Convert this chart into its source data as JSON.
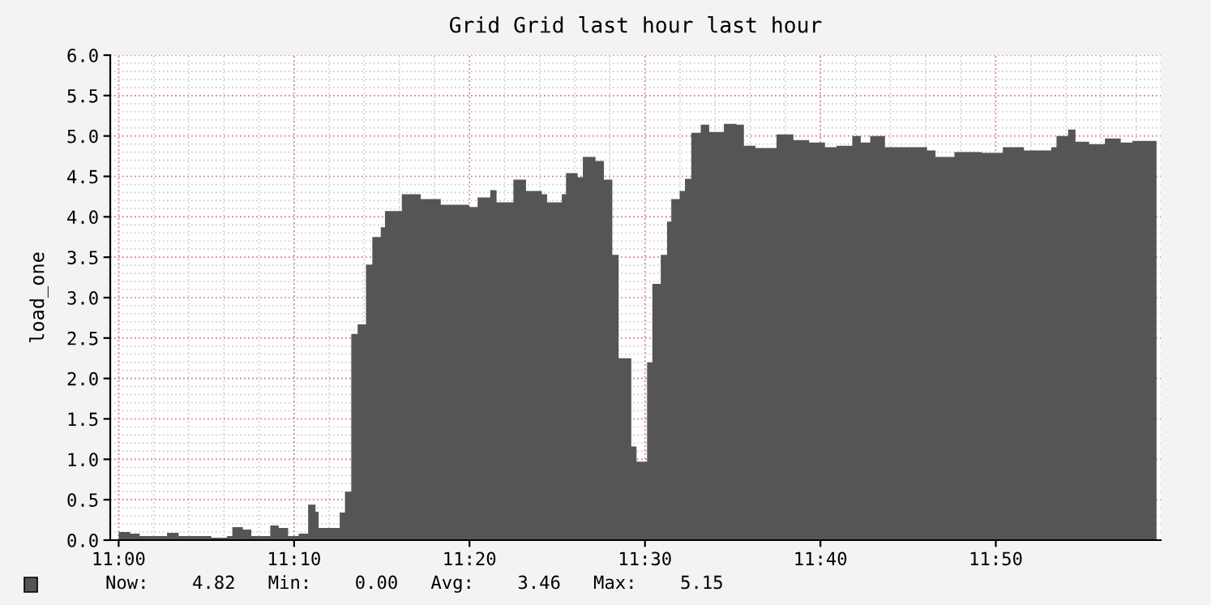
{
  "chart_data": {
    "type": "area",
    "title": "Grid Grid last hour last hour",
    "ylabel": "load_one",
    "x": [
      11.0,
      11.011,
      11.02,
      11.035,
      11.046,
      11.057,
      11.072,
      11.088,
      11.103,
      11.108,
      11.118,
      11.126,
      11.144,
      11.152,
      11.161,
      11.171,
      11.18,
      11.187,
      11.19,
      11.206,
      11.21,
      11.215,
      11.221,
      11.227,
      11.235,
      11.241,
      11.249,
      11.253,
      11.269,
      11.287,
      11.306,
      11.333,
      11.341,
      11.353,
      11.359,
      11.375,
      11.387,
      11.402,
      11.407,
      11.421,
      11.425,
      11.436,
      11.441,
      11.453,
      11.461,
      11.469,
      11.475,
      11.487,
      11.492,
      11.499,
      11.502,
      11.507,
      11.515,
      11.521,
      11.525,
      11.533,
      11.538,
      11.544,
      11.553,
      11.561,
      11.575,
      11.587,
      11.594,
      11.605,
      11.625,
      11.641,
      11.656,
      11.671,
      11.682,
      11.697,
      11.705,
      11.714,
      11.728,
      11.768,
      11.776,
      11.794,
      11.82,
      11.84,
      11.86,
      11.886,
      11.891,
      11.902,
      11.909,
      11.922,
      11.937,
      11.952,
      11.963,
      11.986
    ],
    "series": [
      {
        "color": "#555555",
        "values": [
          0.1,
          0.08,
          0.05,
          0.05,
          0.09,
          0.05,
          0.05,
          0.03,
          0.05,
          0.16,
          0.13,
          0.05,
          0.18,
          0.15,
          0.05,
          0.08,
          0.44,
          0.35,
          0.15,
          0.15,
          0.34,
          0.6,
          2.55,
          2.67,
          3.41,
          3.75,
          3.87,
          4.07,
          4.28,
          4.22,
          4.15,
          4.12,
          4.24,
          4.33,
          4.18,
          4.46,
          4.32,
          4.28,
          4.18,
          4.28,
          4.54,
          4.49,
          4.74,
          4.69,
          4.46,
          3.53,
          2.25,
          1.16,
          0.97,
          0.97,
          2.2,
          3.17,
          3.53,
          3.94,
          4.22,
          4.32,
          4.47,
          5.04,
          5.14,
          5.05,
          5.15,
          5.14,
          4.88,
          4.85,
          5.02,
          4.95,
          4.92,
          4.86,
          4.88,
          5.0,
          4.92,
          5.0,
          4.86,
          4.82,
          4.74,
          4.8,
          4.79,
          4.86,
          4.82,
          4.86,
          5.0,
          5.08,
          4.93,
          4.9,
          4.97,
          4.92,
          4.94,
          4.82
        ]
      }
    ],
    "xlim": [
      10.992,
      11.99
    ],
    "xticks": [
      {
        "value": 11.0,
        "label": "11:00"
      },
      {
        "value": 11.1667,
        "label": "11:10"
      },
      {
        "value": 11.3333,
        "label": "11:20"
      },
      {
        "value": 11.5,
        "label": "11:30"
      },
      {
        "value": 11.6667,
        "label": "11:40"
      },
      {
        "value": 11.8333,
        "label": "11:50"
      }
    ],
    "ylim": [
      0,
      6
    ],
    "yticks": [
      {
        "value": 0,
        "label": "0.0"
      },
      {
        "value": 0.5,
        "label": "0.5"
      },
      {
        "value": 1,
        "label": "1.0"
      },
      {
        "value": 1.5,
        "label": "1.5"
      },
      {
        "value": 2,
        "label": "2.0"
      },
      {
        "value": 2.5,
        "label": "2.5"
      },
      {
        "value": 3,
        "label": "3.0"
      },
      {
        "value": 3.5,
        "label": "3.5"
      },
      {
        "value": 4,
        "label": "4.0"
      },
      {
        "value": 4.5,
        "label": "4.5"
      },
      {
        "value": 5,
        "label": "5.0"
      },
      {
        "value": 5.5,
        "label": "5.5"
      },
      {
        "value": 6,
        "label": "6.0"
      }
    ],
    "grid": true,
    "annotations": [
      "Now:    4.82   Min:    0.00   Avg:    3.46   Max:    5.15"
    ]
  }
}
